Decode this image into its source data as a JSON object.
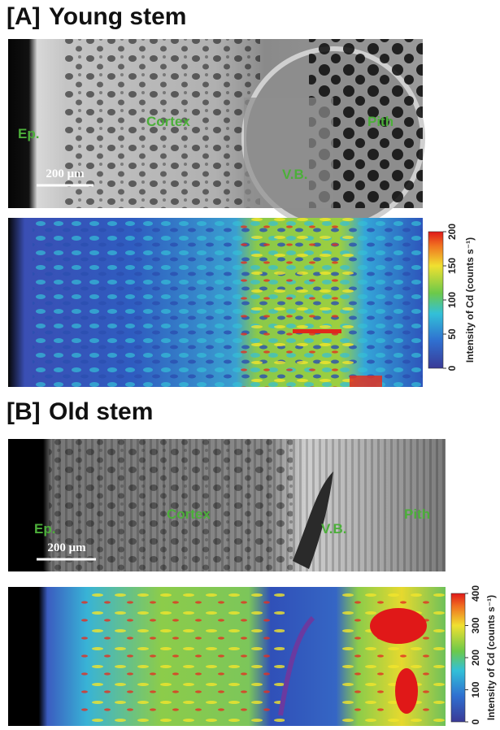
{
  "panels": [
    {
      "label": "[A]",
      "title": "Young stem",
      "annotations": [
        "Ep.",
        "Cortex",
        "V.B.",
        "Pith"
      ],
      "scale_bar": "200 μm",
      "colorbar": {
        "label": "Intensity of Cd (counts s⁻¹)",
        "ticks": [
          0,
          50,
          100,
          150,
          200
        ]
      }
    },
    {
      "label": "[B]",
      "title": "Old stem",
      "annotations": [
        "Ep.",
        "Cortex",
        "V.B.",
        "Pith"
      ],
      "scale_bar": "200 μm",
      "colorbar": {
        "label": "Intensity of Cd (counts s⁻¹)",
        "ticks": [
          0,
          100,
          200,
          300,
          400
        ]
      }
    }
  ]
}
